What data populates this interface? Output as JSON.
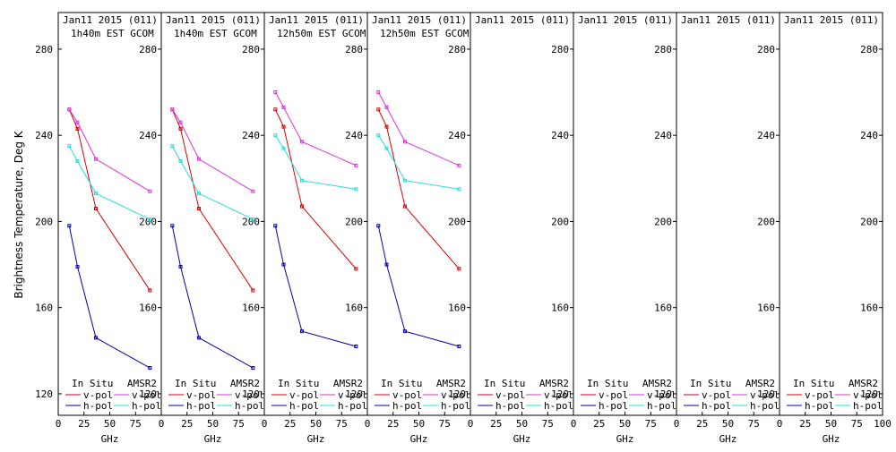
{
  "colors": {
    "insitu_vpol": "#d40000",
    "insitu_hpol": "#0000aa",
    "amsr2_vpol": "#dd33dd",
    "amsr2_hpol": "#22dddd"
  },
  "chart_data": {
    "type": "line",
    "ylabel": "Brightness Temperature, Deg K",
    "xlabel": "GHz",
    "xlim": [
      0,
      100
    ],
    "ylim": [
      110,
      297
    ],
    "x_ticks": [
      "0",
      "25",
      "50",
      "75"
    ],
    "last_x_ticks": [
      "0",
      "25",
      "50",
      "75",
      "100"
    ],
    "y_ticks": [
      120,
      160,
      200,
      240,
      280
    ],
    "legend": {
      "insitu_title": "In Situ",
      "amsr2_title": "AMSR2",
      "vpol": "v-pol",
      "hpol": "h-pol"
    },
    "panels": [
      {
        "title": "Jan11 2015 (011)",
        "subtitle": "1h40m EST GCOM",
        "series": {
          "insitu_vpol": [
            [
              10.7,
              252
            ],
            [
              18.7,
              243
            ],
            [
              36.5,
              206
            ],
            [
              89,
              168
            ]
          ],
          "insitu_hpol": [
            [
              10.7,
              198
            ],
            [
              18.7,
              179
            ],
            [
              36.5,
              146
            ],
            [
              89,
              132
            ]
          ],
          "amsr2_vpol": [
            [
              10.7,
              252
            ],
            [
              18.7,
              246
            ],
            [
              36.5,
              229
            ],
            [
              89,
              214
            ]
          ],
          "amsr2_hpol": [
            [
              10.7,
              235
            ],
            [
              18.7,
              228
            ],
            [
              36.5,
              213
            ],
            [
              89,
              201
            ]
          ]
        }
      },
      {
        "title": "Jan11 2015 (011)",
        "subtitle": "1h40m EST GCOM",
        "series": {
          "insitu_vpol": [
            [
              10.7,
              252
            ],
            [
              18.7,
              243
            ],
            [
              36.5,
              206
            ],
            [
              89,
              168
            ]
          ],
          "insitu_hpol": [
            [
              10.7,
              198
            ],
            [
              18.7,
              179
            ],
            [
              36.5,
              146
            ],
            [
              89,
              132
            ]
          ],
          "amsr2_vpol": [
            [
              10.7,
              252
            ],
            [
              18.7,
              246
            ],
            [
              36.5,
              229
            ],
            [
              89,
              214
            ]
          ],
          "amsr2_hpol": [
            [
              10.7,
              235
            ],
            [
              18.7,
              228
            ],
            [
              36.5,
              213
            ],
            [
              89,
              201
            ]
          ]
        }
      },
      {
        "title": "Jan11 2015 (011)",
        "subtitle": "12h50m EST GCOM",
        "series": {
          "insitu_vpol": [
            [
              10.7,
              252
            ],
            [
              18.7,
              244
            ],
            [
              36.5,
              207
            ],
            [
              89,
              178
            ]
          ],
          "insitu_hpol": [
            [
              10.7,
              198
            ],
            [
              18.7,
              180
            ],
            [
              36.5,
              149
            ],
            [
              89,
              142
            ]
          ],
          "amsr2_vpol": [
            [
              10.7,
              260
            ],
            [
              18.7,
              253
            ],
            [
              36.5,
              237
            ],
            [
              89,
              226
            ]
          ],
          "amsr2_hpol": [
            [
              10.7,
              240
            ],
            [
              18.7,
              234
            ],
            [
              36.5,
              219
            ],
            [
              89,
              215
            ]
          ]
        }
      },
      {
        "title": "Jan11 2015 (011)",
        "subtitle": "12h50m EST GCOM",
        "series": {
          "insitu_vpol": [
            [
              10.7,
              252
            ],
            [
              18.7,
              244
            ],
            [
              36.5,
              207
            ],
            [
              89,
              178
            ]
          ],
          "insitu_hpol": [
            [
              10.7,
              198
            ],
            [
              18.7,
              180
            ],
            [
              36.5,
              149
            ],
            [
              89,
              142
            ]
          ],
          "amsr2_vpol": [
            [
              10.7,
              260
            ],
            [
              18.7,
              253
            ],
            [
              36.5,
              237
            ],
            [
              89,
              226
            ]
          ],
          "amsr2_hpol": [
            [
              10.7,
              240
            ],
            [
              18.7,
              234
            ],
            [
              36.5,
              219
            ],
            [
              89,
              215
            ]
          ]
        }
      },
      {
        "title": "Jan11 2015 (011)",
        "subtitle": "",
        "series": {}
      },
      {
        "title": "Jan11 2015 (011)",
        "subtitle": "",
        "series": {}
      },
      {
        "title": "Jan11 2015 (011)",
        "subtitle": "",
        "series": {}
      },
      {
        "title": "Jan11 2015 (011)",
        "subtitle": "",
        "series": {}
      }
    ]
  }
}
